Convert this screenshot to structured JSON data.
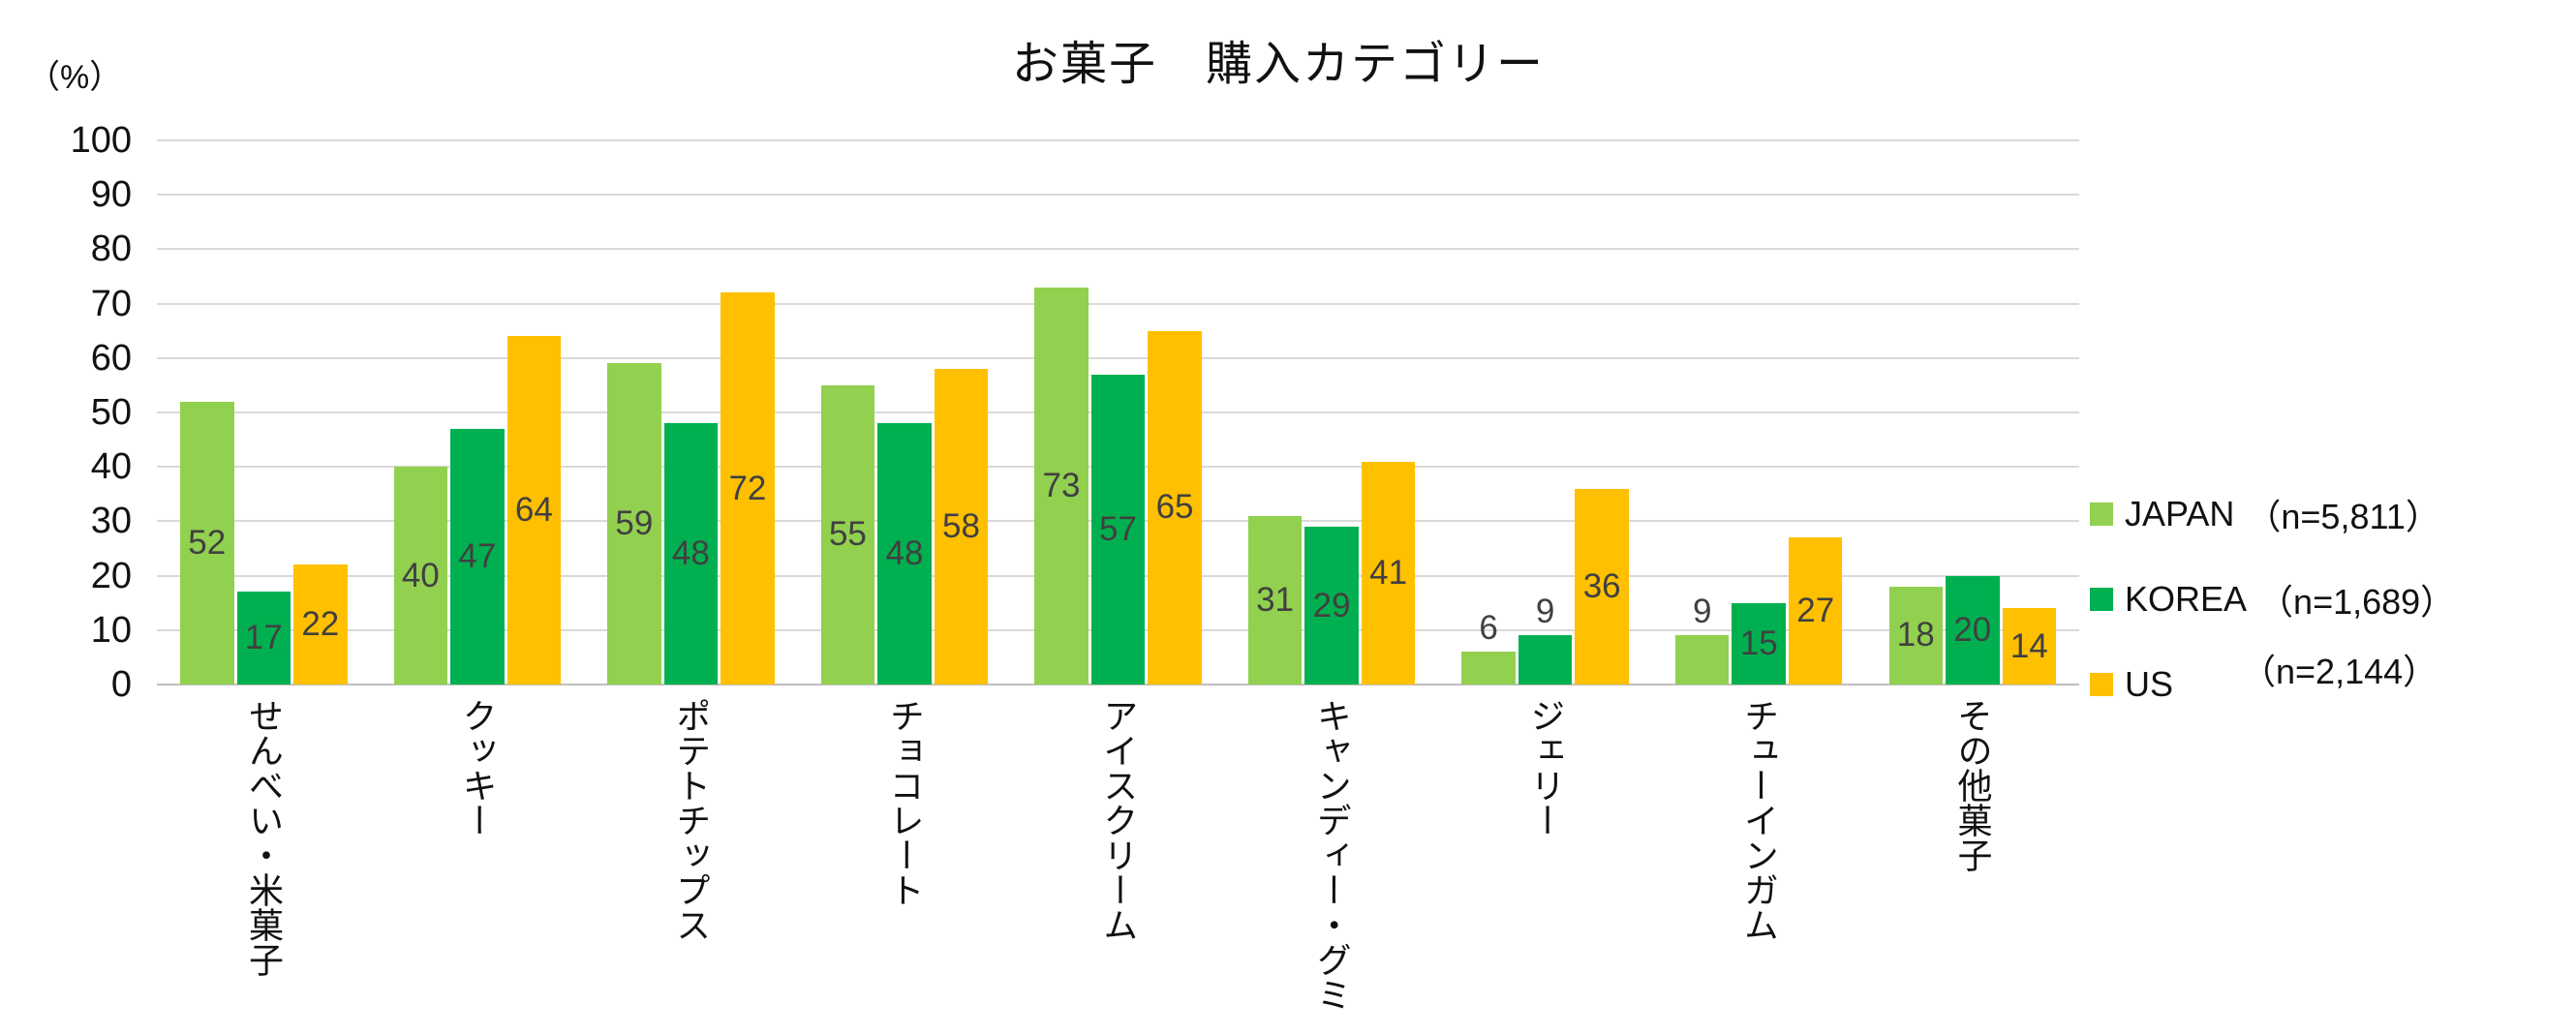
{
  "title": "お菓子　購入カテゴリー",
  "percent_label": "（%）",
  "y_axis": {
    "ticks": [
      "100",
      "90",
      "80",
      "70",
      "60",
      "50",
      "40",
      "30",
      "20",
      "10",
      "0"
    ]
  },
  "chart_data": {
    "type": "bar",
    "title": "お菓子　購入カテゴリー",
    "ylabel": "（%）",
    "ylim": [
      0,
      100
    ],
    "ytick_step": 10,
    "grid": true,
    "legend_position": "right",
    "categories": [
      "せんべい・米菓子",
      "クッキー",
      "ポテトチップス",
      "チョコレート",
      "アイスクリーム",
      "キャンディー・グミ",
      "ジェリー",
      "チューインガム",
      "その他菓子"
    ],
    "series": [
      {
        "name": "JAPAN",
        "n_label": "（n=5,811）",
        "color": "#92D050",
        "values": [
          52,
          40,
          59,
          55,
          73,
          31,
          6,
          9,
          18
        ]
      },
      {
        "name": "KOREA",
        "n_label": "（n=1,689）",
        "color": "#00B050",
        "values": [
          17,
          47,
          48,
          48,
          57,
          29,
          9,
          15,
          20
        ]
      },
      {
        "name": "US",
        "n_label": "（n=2,144）",
        "color": "#FFC000",
        "values": [
          22,
          64,
          72,
          58,
          65,
          41,
          36,
          27,
          14
        ]
      }
    ],
    "data_label_color": "#404040",
    "gridline_color": "#d9d9d9"
  }
}
